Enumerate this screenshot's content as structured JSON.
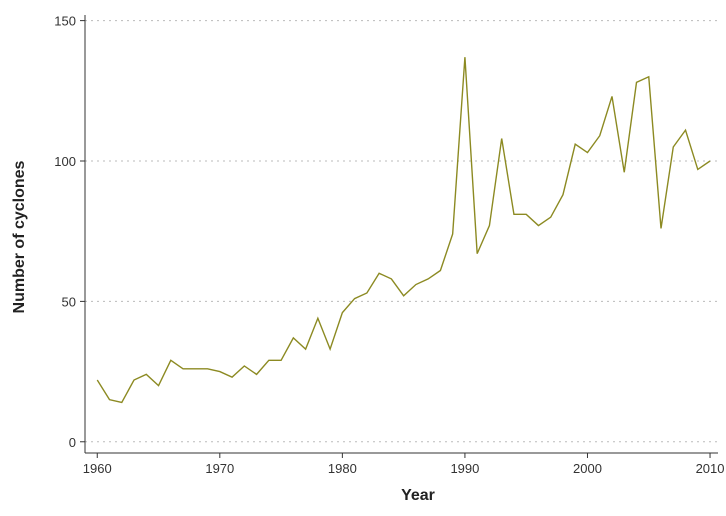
{
  "chart_data": {
    "type": "line",
    "x_label": "Year",
    "y_label": "Number of cyclones",
    "x": [
      1960,
      1961,
      1962,
      1963,
      1964,
      1965,
      1966,
      1967,
      1968,
      1969,
      1970,
      1971,
      1972,
      1973,
      1974,
      1975,
      1976,
      1977,
      1978,
      1979,
      1980,
      1981,
      1982,
      1983,
      1984,
      1985,
      1986,
      1987,
      1988,
      1989,
      1990,
      1991,
      1992,
      1993,
      1994,
      1995,
      1996,
      1997,
      1998,
      1999,
      2000,
      2001,
      2002,
      2003,
      2004,
      2005,
      2006,
      2007,
      2008,
      2009,
      2010
    ],
    "series": [
      {
        "name": "Cyclones",
        "color": "#8c8a22",
        "values": [
          22,
          15,
          14,
          22,
          24,
          20,
          29,
          26,
          26,
          26,
          25,
          23,
          27,
          24,
          29,
          29,
          37,
          33,
          44,
          33,
          46,
          51,
          53,
          60,
          58,
          52,
          56,
          58,
          61,
          74,
          137,
          67,
          77,
          108,
          81,
          81,
          77,
          80,
          88,
          106,
          103,
          109,
          123,
          96,
          128,
          130,
          76,
          105,
          111,
          97,
          100
        ]
      }
    ],
    "xlim": [
      1959,
      2010.65
    ],
    "xticks": [
      1960,
      1970,
      1980,
      1990,
      2000,
      2010
    ],
    "ylim": [
      -4,
      152
    ],
    "yticks": [
      0,
      50,
      100,
      150
    ],
    "grid": true
  }
}
